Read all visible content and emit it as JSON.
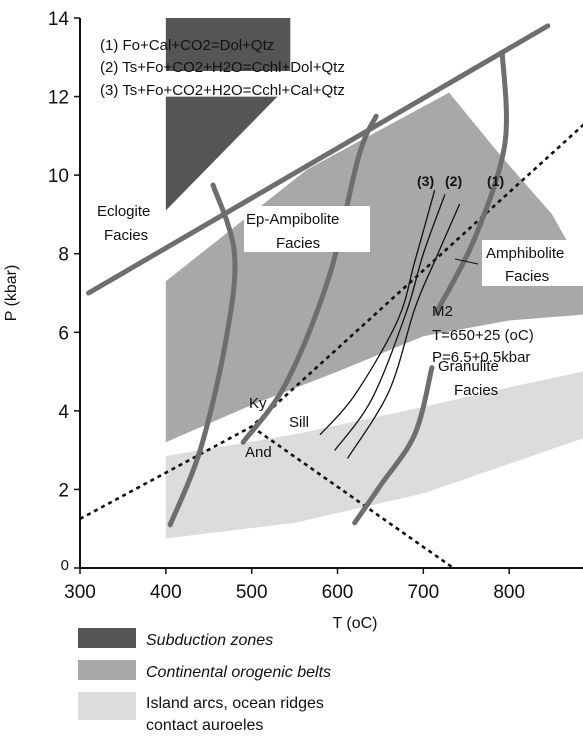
{
  "chart_data": {
    "type": "line",
    "title": "",
    "xlabel": "T (oC)",
    "ylabel": "P (kbar)",
    "xlim": [
      300,
      900
    ],
    "ylim": [
      0,
      14
    ],
    "x_ticks": [
      300,
      400,
      500,
      600,
      700,
      800
    ],
    "y_ticks": [
      0,
      2,
      4,
      6,
      8,
      10,
      12,
      14
    ],
    "reactions": [
      "(1) Fo+Cal+CO2=Dol+Qtz",
      "(2) Ts+Fo+CO2+H2O=Cchl+Dol+Qtz",
      "(3) Ts+Fo+CO2+H2O=Cchl+Cal+Qtz"
    ],
    "facies_labels": {
      "eclogite": [
        "Eclogite",
        "Facies"
      ],
      "ep_amphibolite": [
        "Ep-Ampibolite",
        "Facies"
      ],
      "amphibolite": [
        "Amphibolite",
        "Facies"
      ],
      "granulite": [
        "Granulite",
        "Facies"
      ]
    },
    "aluminosilicate_labels": {
      "ky": "Ky",
      "sill": "Sill",
      "and": "And"
    },
    "reaction_curve_labels": [
      "(3)",
      "(2)",
      "(1)"
    ],
    "m2_annotation": [
      "M2",
      "T=650+25 (oC)",
      "P=6.5+0.5kbar"
    ],
    "regions": [
      {
        "name": "Subduction zones",
        "color": "#555555",
        "polygons": [
          [
            [
              400,
              12.65
            ],
            [
              545,
              12.65
            ],
            [
              545,
              14.0
            ],
            [
              400,
              14.0
            ]
          ],
          [
            [
              400,
              12.0
            ],
            [
              530,
              12.0
            ],
            [
              400,
              9.1
            ]
          ]
        ]
      },
      {
        "name": "Continental orogenic belts",
        "color": "#a8a8a8",
        "polygons": [
          [
            [
              400,
              7.3
            ],
            [
              565,
              10.15
            ],
            [
              730,
              12.1
            ],
            [
              790,
              10.5
            ],
            [
              850,
              9.0
            ],
            [
              900,
              7.6
            ],
            [
              900,
              6.45
            ],
            [
              800,
              6.3
            ],
            [
              700,
              5.9
            ],
            [
              600,
              5.0
            ],
            [
              500,
              4.15
            ],
            [
              400,
              3.2
            ]
          ]
        ]
      },
      {
        "name": "Island arcs, ocean ridges contact auroeles",
        "color": "#dcdcdc",
        "polygons": [
          [
            [
              400,
              2.85
            ],
            [
              550,
              3.4
            ],
            [
              700,
              4.1
            ],
            [
              800,
              4.6
            ],
            [
              900,
              5.0
            ],
            [
              900,
              3.3
            ],
            [
              700,
              1.9
            ],
            [
              550,
              1.15
            ],
            [
              400,
              0.75
            ]
          ]
        ]
      }
    ],
    "lines": [
      {
        "name": "eclogite_boundary",
        "style": "solid_thick",
        "points": [
          [
            310,
            7.0
          ],
          [
            845,
            13.8
          ]
        ]
      },
      {
        "name": "kyanite_sillimanite_andalusite_boundary",
        "style": "dashed",
        "points": [
          [
            300,
            1.25
          ],
          [
            500,
            3.6
          ],
          [
            900,
            11.55
          ]
        ]
      },
      {
        "name": "andalusite_sillimanite",
        "style": "dashed",
        "points": [
          [
            500,
            3.6
          ],
          [
            735,
            0.0
          ]
        ]
      },
      {
        "name": "facies_curve_A",
        "style": "solid_thick",
        "points": [
          [
            405,
            1.1
          ],
          [
            440,
            3.0
          ],
          [
            470,
            5.8
          ],
          [
            480,
            8.0
          ],
          [
            455,
            9.75
          ]
        ]
      },
      {
        "name": "facies_curve_B",
        "style": "solid_thick",
        "points": [
          [
            490,
            3.2
          ],
          [
            540,
            4.7
          ],
          [
            590,
            7.4
          ],
          [
            625,
            10.5
          ],
          [
            645,
            11.5
          ]
        ]
      },
      {
        "name": "facies_curve_C",
        "style": "solid_thick",
        "points": [
          [
            715,
            6.5
          ],
          [
            760,
            8.4
          ],
          [
            795,
            10.8
          ],
          [
            792,
            13.1
          ]
        ]
      },
      {
        "name": "facies_curve_D",
        "style": "solid_thick",
        "points": [
          [
            620,
            1.15
          ],
          [
            650,
            2.1
          ],
          [
            690,
            3.4
          ],
          [
            710,
            5.1
          ]
        ]
      },
      {
        "name": "reaction_3",
        "style": "solid_thin",
        "points": [
          [
            580,
            3.4
          ],
          [
            620,
            4.4
          ],
          [
            670,
            6.3
          ],
          [
            690,
            7.8
          ],
          [
            713,
            9.6
          ]
        ]
      },
      {
        "name": "reaction_2",
        "style": "solid_thin",
        "points": [
          [
            597,
            3.0
          ],
          [
            640,
            4.3
          ],
          [
            680,
            6.5
          ],
          [
            700,
            8.0
          ],
          [
            725,
            9.5
          ]
        ]
      },
      {
        "name": "reaction_1",
        "style": "solid_thin",
        "points": [
          [
            612,
            2.8
          ],
          [
            660,
            4.5
          ],
          [
            690,
            6.6
          ],
          [
            713,
            7.8
          ],
          [
            742,
            9.25
          ]
        ]
      }
    ],
    "grid": false,
    "legend_position": "bottom-left"
  },
  "legend": [
    {
      "label_lines": [
        "Subduction zones"
      ],
      "color": "#555555",
      "italic": true
    },
    {
      "label_lines": [
        "Continental orogenic belts"
      ],
      "color": "#a8a8a8",
      "italic": true
    },
    {
      "label_lines": [
        "Island arcs, ocean ridges",
        "contact auroeles"
      ],
      "color": "#dcdcdc",
      "italic": false
    }
  ]
}
